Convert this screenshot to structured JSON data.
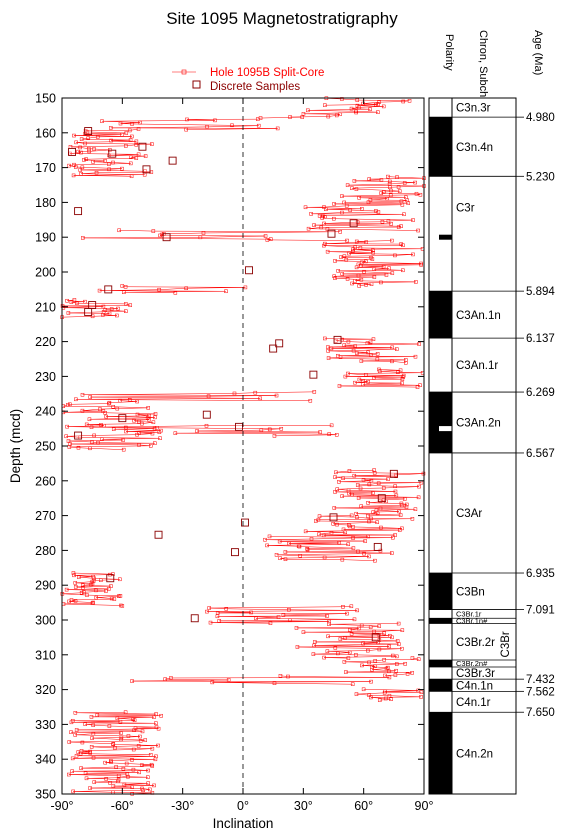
{
  "chart_data": {
    "type": "scatter",
    "title": "Site 1095 Magnetostratigraphy",
    "xlabel": "Inclination",
    "ylabel": "Depth (mcd)",
    "xlim": [
      -90,
      90
    ],
    "ylim": [
      350,
      150
    ],
    "x_ticks": [
      "-90°",
      "-60°",
      "-30°",
      "0°",
      "30°",
      "60°",
      "90°"
    ],
    "y_ticks": [
      "150",
      "160",
      "170",
      "180",
      "190",
      "200",
      "210",
      "220",
      "230",
      "240",
      "250",
      "260",
      "270",
      "280",
      "290",
      "300",
      "310",
      "320",
      "330",
      "340",
      "350"
    ],
    "legend": {
      "placement": "top-left",
      "entries": [
        {
          "label": "Hole 1095B Split-Core",
          "marker": "line-small-square",
          "color": "#ff0000"
        },
        {
          "label": "Discrete Samples",
          "marker": "square",
          "color": "#8b0000"
        }
      ]
    },
    "column_headers": {
      "polarity": "Polarity",
      "chron": "Chron, Subchrons",
      "age": "Age (Ma)"
    },
    "polarity_zones": [
      {
        "top": 150,
        "bottom": 155.5,
        "polarity": "reversed",
        "chron": "C3n.3r"
      },
      {
        "top": 155.5,
        "bottom": 172.5,
        "polarity": "normal",
        "chron": "C3n.4n"
      },
      {
        "top": 172.5,
        "bottom": 205.5,
        "polarity": "reversed",
        "chron": "C3r"
      },
      {
        "top": 205.5,
        "bottom": 219,
        "polarity": "normal",
        "chron": "C3An.1n"
      },
      {
        "top": 219,
        "bottom": 234.5,
        "polarity": "reversed",
        "chron": "C3An.1r"
      },
      {
        "top": 234.5,
        "bottom": 252,
        "polarity": "normal",
        "chron": "C3An.2n"
      },
      {
        "top": 252,
        "bottom": 286.5,
        "polarity": "reversed",
        "chron": "C3Ar"
      },
      {
        "top": 286.5,
        "bottom": 297,
        "polarity": "normal",
        "chron": "C3Bn"
      },
      {
        "top": 297,
        "bottom": 299.5,
        "polarity": "reversed",
        "chron": "C3Br.1r"
      },
      {
        "top": 299.5,
        "bottom": 301,
        "polarity": "normal",
        "chron": "C3Br.1n#"
      },
      {
        "top": 301,
        "bottom": 311.5,
        "polarity": "reversed",
        "chron": "C3Br.2r"
      },
      {
        "top": 311.5,
        "bottom": 313.5,
        "polarity": "normal",
        "chron": "C3Br.2n#"
      },
      {
        "top": 313.5,
        "bottom": 317,
        "polarity": "reversed",
        "chron": "C3Br.3r"
      },
      {
        "top": 317,
        "bottom": 320.5,
        "polarity": "normal",
        "chron": "C4n.1n"
      },
      {
        "top": 320.5,
        "bottom": 326.5,
        "polarity": "reversed",
        "chron": "C4n.1r"
      },
      {
        "top": 326.5,
        "bottom": 350,
        "polarity": "normal",
        "chron": "C4n.2n"
      }
    ],
    "group_label": "C3Br",
    "age_ticks": [
      {
        "depth": 155.5,
        "age": "4.980"
      },
      {
        "depth": 172.5,
        "age": "5.230"
      },
      {
        "depth": 205.5,
        "age": "5.894"
      },
      {
        "depth": 219,
        "age": "6.137"
      },
      {
        "depth": 234.5,
        "age": "6.269"
      },
      {
        "depth": 252,
        "age": "6.567"
      },
      {
        "depth": 286.5,
        "age": "6.935"
      },
      {
        "depth": 297,
        "age": "7.091"
      },
      {
        "depth": 317,
        "age": "7.432"
      },
      {
        "depth": 320.5,
        "age": "7.562"
      },
      {
        "depth": 326.5,
        "age": "7.650"
      }
    ],
    "polarity_marks": [
      {
        "depth": 190,
        "polarity": "normal",
        "asterisk": "*"
      },
      {
        "depth": 245,
        "polarity": "reversed",
        "asterisk": "*"
      }
    ],
    "split_core_segments": [
      {
        "d0": 150,
        "d1": 152,
        "lo": 40,
        "hi": 88
      },
      {
        "d0": 152,
        "d1": 155.5,
        "lo": 20,
        "hi": 70
      },
      {
        "d0": 155.5,
        "d1": 159,
        "lo": -75,
        "hi": 30
      },
      {
        "d0": 159,
        "d1": 172.5,
        "lo": -88,
        "hi": -45
      },
      {
        "d0": 172.5,
        "d1": 180,
        "lo": 45,
        "hi": 90
      },
      {
        "d0": 180,
        "d1": 188,
        "lo": 30,
        "hi": 88
      },
      {
        "d0": 188,
        "d1": 191,
        "lo": -80,
        "hi": 60
      },
      {
        "d0": 191,
        "d1": 204,
        "lo": 40,
        "hi": 90
      },
      {
        "d0": 204,
        "d1": 206,
        "lo": -85,
        "hi": 15
      },
      {
        "d0": 208,
        "d1": 213,
        "lo": -90,
        "hi": -55
      },
      {
        "d0": 219,
        "d1": 226,
        "lo": 40,
        "hi": 88
      },
      {
        "d0": 228,
        "d1": 233,
        "lo": 45,
        "hi": 90
      },
      {
        "d0": 234.5,
        "d1": 237,
        "lo": -85,
        "hi": 70
      },
      {
        "d0": 237,
        "d1": 251,
        "lo": -90,
        "hi": -40
      },
      {
        "d0": 244,
        "d1": 247,
        "lo": -80,
        "hi": 60
      },
      {
        "d0": 257,
        "d1": 270,
        "lo": 45,
        "hi": 90
      },
      {
        "d0": 270,
        "d1": 276,
        "lo": 30,
        "hi": 85
      },
      {
        "d0": 276,
        "d1": 283,
        "lo": 10,
        "hi": 75
      },
      {
        "d0": 286.5,
        "d1": 296,
        "lo": -90,
        "hi": -60
      },
      {
        "d0": 296,
        "d1": 301,
        "lo": -20,
        "hi": 60
      },
      {
        "d0": 301,
        "d1": 311,
        "lo": 25,
        "hi": 80
      },
      {
        "d0": 311,
        "d1": 316,
        "lo": 50,
        "hi": 88
      },
      {
        "d0": 316,
        "d1": 318.5,
        "lo": -85,
        "hi": 80
      },
      {
        "d0": 320,
        "d1": 323,
        "lo": 55,
        "hi": 90
      },
      {
        "d0": 326.5,
        "d1": 350,
        "lo": -88,
        "hi": -40
      }
    ],
    "discrete_samples": [
      {
        "x": -85,
        "y": 165.5
      },
      {
        "x": -77,
        "y": 159.5
      },
      {
        "x": -65,
        "y": 166
      },
      {
        "x": -50,
        "y": 164
      },
      {
        "x": -48,
        "y": 170.5
      },
      {
        "x": -35,
        "y": 168
      },
      {
        "x": -82,
        "y": 182.5
      },
      {
        "x": -38,
        "y": 190
      },
      {
        "x": 44,
        "y": 189
      },
      {
        "x": 55,
        "y": 186
      },
      {
        "x": 3,
        "y": 199.5
      },
      {
        "x": -67,
        "y": 205
      },
      {
        "x": -77,
        "y": 211.5
      },
      {
        "x": -75,
        "y": 209.5
      },
      {
        "x": 15,
        "y": 222
      },
      {
        "x": 18,
        "y": 220.5
      },
      {
        "x": 35,
        "y": 229.5
      },
      {
        "x": 47,
        "y": 219.5
      },
      {
        "x": -82,
        "y": 247
      },
      {
        "x": -60,
        "y": 242
      },
      {
        "x": -18,
        "y": 241
      },
      {
        "x": -2,
        "y": 244.5
      },
      {
        "x": 45,
        "y": 270.5
      },
      {
        "x": 1,
        "y": 272
      },
      {
        "x": -42,
        "y": 275.5
      },
      {
        "x": -4,
        "y": 280.5
      },
      {
        "x": 67,
        "y": 279
      },
      {
        "x": -66,
        "y": 288
      },
      {
        "x": -24,
        "y": 299.5
      },
      {
        "x": 66,
        "y": 305
      },
      {
        "x": 69,
        "y": 265
      },
      {
        "x": 75,
        "y": 258
      }
    ]
  }
}
